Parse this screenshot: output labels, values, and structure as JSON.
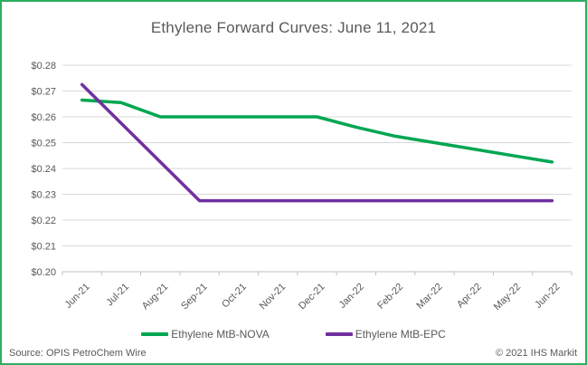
{
  "colors": {
    "frame_border": "#2EAE60",
    "text": "#595959",
    "gridline": "#D9D9D9",
    "axis_line": "#BFBFBF",
    "nova_green": "#00A651",
    "epc_purple": "#7030A0"
  },
  "chart_data": {
    "type": "line",
    "title": "Ethylene Forward Curves: June 11, 2021",
    "categories": [
      "Jun-21",
      "Jul-21",
      "Aug-21",
      "Sep-21",
      "Oct-21",
      "Nov-21",
      "Dec-21",
      "Jan-22",
      "Feb-22",
      "Mar-22",
      "Apr-22",
      "May-22",
      "Jun-22"
    ],
    "series": [
      {
        "name": "Ethylene MtB-NOVA",
        "color": "#00A651",
        "values": [
          0.2665,
          0.2655,
          0.26,
          0.26,
          0.26,
          0.26,
          0.26,
          0.256,
          0.2525,
          0.25,
          0.2475,
          0.245,
          0.2425
        ]
      },
      {
        "name": "Ethylene MtB-EPC",
        "color": "#7030A0",
        "values": [
          0.2725,
          0.2575,
          0.2425,
          0.2275,
          0.2275,
          0.2275,
          0.2275,
          0.2275,
          0.2275,
          0.2275,
          0.2275,
          0.2275,
          0.2275
        ]
      }
    ],
    "ylim": [
      0.2,
      0.28
    ],
    "y_tick_step": 0.01,
    "y_tick_prefix": "$",
    "y_tick_decimals": 2,
    "grid": true,
    "legend_position": "bottom",
    "x_label_rotation": -45
  },
  "footer": {
    "source": "Source: OPIS PetroChem Wire",
    "copyright": "© 2021 IHS Markit"
  }
}
